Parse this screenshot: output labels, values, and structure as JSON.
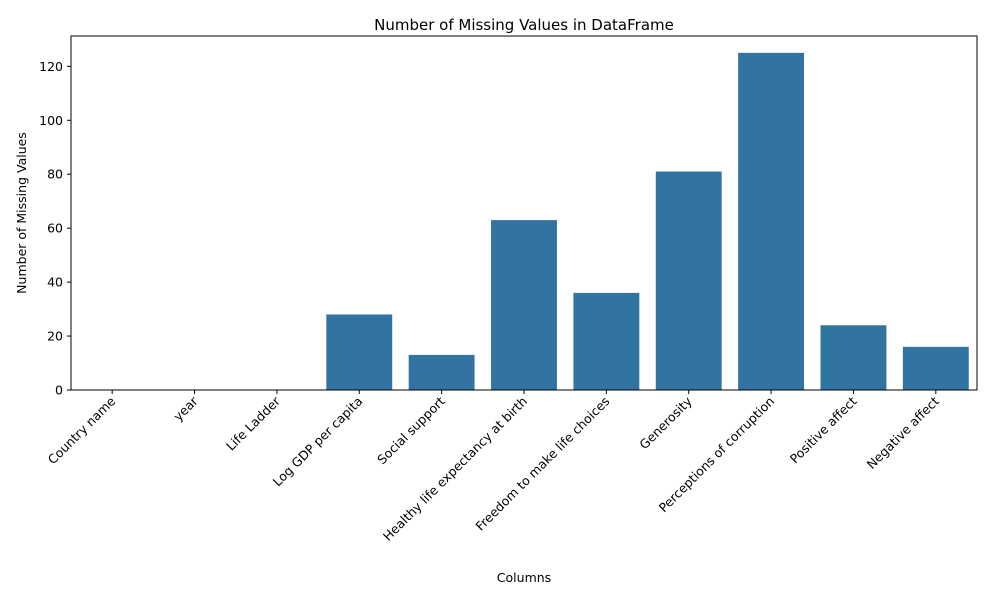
{
  "chart_data": {
    "type": "bar",
    "title": "Number of Missing Values in DataFrame",
    "xlabel": "Columns",
    "ylabel": "Number of Missing Values",
    "categories": [
      "Country name",
      "year",
      "Life Ladder",
      "Log GDP per capita",
      "Social support",
      "Healthy life expectancy at birth",
      "Freedom to make life choices",
      "Generosity",
      "Perceptions of corruption",
      "Positive affect",
      "Negative affect"
    ],
    "values": [
      0,
      0,
      0,
      28,
      13,
      63,
      36,
      81,
      125,
      24,
      16
    ],
    "ylim": [
      0,
      131.25
    ],
    "yticks": [
      0,
      20,
      40,
      60,
      80,
      100,
      120
    ],
    "x_tick_rotation_deg": 45,
    "grid": false,
    "legend": "none",
    "bar_color": "#3274a1"
  }
}
